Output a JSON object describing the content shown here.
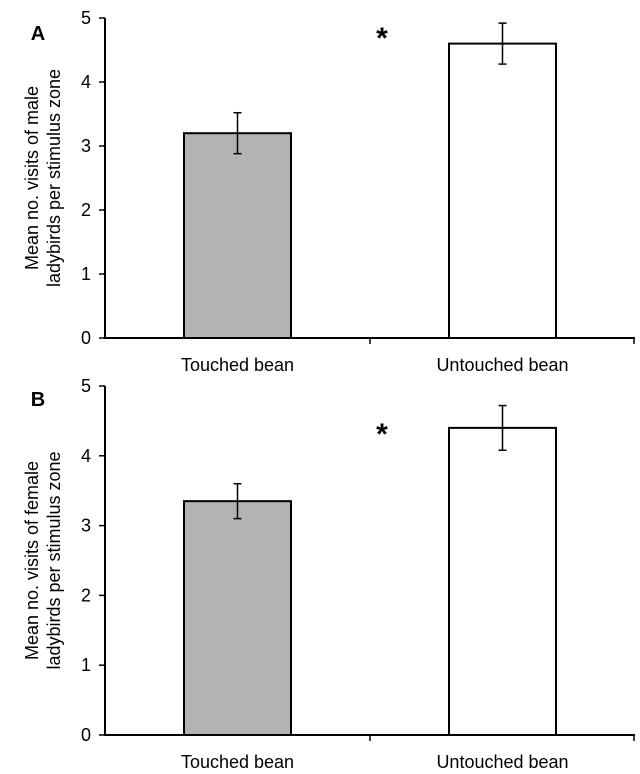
{
  "chart_data": [
    {
      "panel_label": "A",
      "type": "bar",
      "categories": [
        "Touched bean",
        "Untouched bean"
      ],
      "values": [
        3.2,
        4.6
      ],
      "errors": [
        0.32,
        0.32
      ],
      "ylabel_lines": [
        "Mean no. visits of male",
        "ladybirds  per stimulus zone"
      ],
      "ylim": [
        0,
        5
      ],
      "yticks": [
        0,
        1,
        2,
        3,
        4,
        5
      ],
      "significance": "*",
      "bar_colors": [
        "#b3b3b3",
        "#ffffff"
      ],
      "grid": false
    },
    {
      "panel_label": "B",
      "type": "bar",
      "categories": [
        "Touched bean",
        "Untouched bean"
      ],
      "values": [
        3.35,
        4.4
      ],
      "errors": [
        0.25,
        0.32
      ],
      "ylabel_lines": [
        "Mean no. visits of female",
        "ladybirds per stimulus zone"
      ],
      "ylim": [
        0,
        5
      ],
      "yticks": [
        0,
        1,
        2,
        3,
        4,
        5
      ],
      "significance": "*",
      "bar_colors": [
        "#b3b3b3",
        "#ffffff"
      ],
      "grid": false
    }
  ]
}
